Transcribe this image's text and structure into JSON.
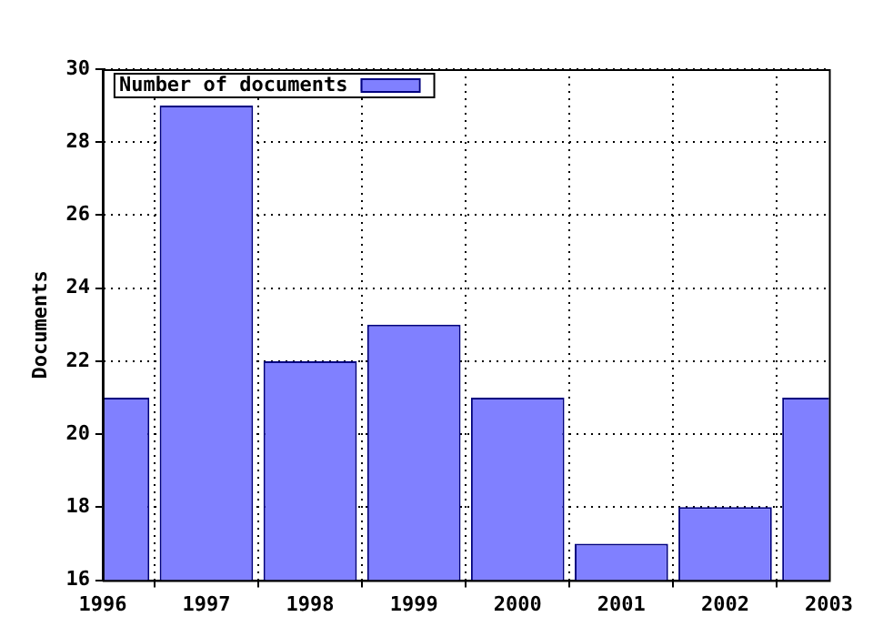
{
  "chart_data": {
    "type": "bar",
    "ylabel": "Documents",
    "x": [
      1996,
      1997,
      1998,
      1999,
      2000,
      2001,
      2002,
      2003
    ],
    "series": [
      {
        "name": "Number of documents",
        "color": "#8080ff",
        "values": [
          21,
          29,
          22,
          23,
          21,
          17,
          18,
          21
        ]
      }
    ],
    "xlim": [
      1996,
      2003
    ],
    "xticks": [
      1996,
      1997,
      1998,
      1999,
      2000,
      2001,
      2002,
      2003
    ],
    "ylim": [
      16,
      30
    ],
    "yticks": [
      16,
      18,
      20,
      22,
      24,
      26,
      28,
      30
    ],
    "grid": true,
    "legend": "top left"
  }
}
